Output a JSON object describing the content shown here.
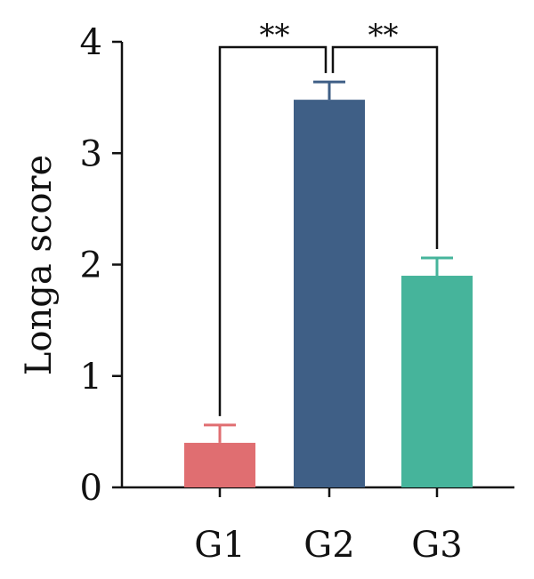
{
  "chart_data": {
    "type": "bar",
    "title": "",
    "xlabel": "",
    "ylabel": "Longa score",
    "ylim": [
      0,
      4
    ],
    "yticks": [
      0,
      1,
      2,
      3,
      4
    ],
    "categories": [
      "G1",
      "G2",
      "G3"
    ],
    "values": [
      0.4,
      3.48,
      1.9
    ],
    "error_upper": [
      0.16,
      0.16,
      0.16
    ],
    "colors": [
      "#e06e71",
      "#3f5f86",
      "#46b49b"
    ],
    "significance": [
      {
        "from": "G1",
        "to": "G2",
        "label": "**"
      },
      {
        "from": "G2",
        "to": "G3",
        "label": "**"
      }
    ],
    "grid": false,
    "legend": "none"
  }
}
